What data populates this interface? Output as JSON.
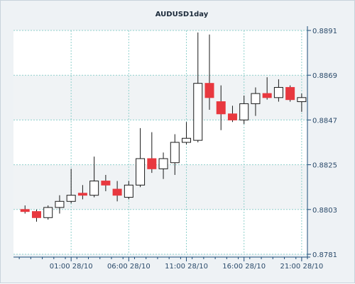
{
  "chart_data": {
    "type": "candlestick",
    "title": "AUDUSD1day",
    "xlabel": "",
    "ylabel": "",
    "ylim": [
      0.8781,
      0.8891
    ],
    "y_ticks": [
      "0.8891",
      "0.8869",
      "0.8847",
      "0.8825",
      "0.8803",
      "0.8781"
    ],
    "y_tick_values": [
      0.8891,
      0.8869,
      0.8847,
      0.8825,
      0.8803,
      0.8781
    ],
    "x_ticks": [
      "01:00 28/10",
      "06:00 28/10",
      "11:00 28/10",
      "16:00 28/10",
      "21:00 28/10"
    ],
    "x_tick_index": [
      4,
      9,
      14,
      19,
      24
    ],
    "grid": true,
    "colors": {
      "up_fill": "#ffffff",
      "down_fill": "#e8383f",
      "outline": "#1a1a1a",
      "grid": "#8fd0cc",
      "axis": "#1b4a78"
    },
    "candles": [
      {
        "open": 0.8803,
        "high": 0.8805,
        "low": 0.8801,
        "close": 0.8802
      },
      {
        "open": 0.8802,
        "high": 0.8803,
        "low": 0.8797,
        "close": 0.8799
      },
      {
        "open": 0.8799,
        "high": 0.8805,
        "low": 0.8798,
        "close": 0.8804
      },
      {
        "open": 0.8804,
        "high": 0.881,
        "low": 0.8801,
        "close": 0.8807
      },
      {
        "open": 0.8807,
        "high": 0.8823,
        "low": 0.8806,
        "close": 0.881
      },
      {
        "open": 0.8811,
        "high": 0.8815,
        "low": 0.8808,
        "close": 0.881
      },
      {
        "open": 0.881,
        "high": 0.8829,
        "low": 0.8809,
        "close": 0.8817
      },
      {
        "open": 0.8817,
        "high": 0.882,
        "low": 0.8812,
        "close": 0.8815
      },
      {
        "open": 0.8813,
        "high": 0.8817,
        "low": 0.8807,
        "close": 0.881
      },
      {
        "open": 0.8809,
        "high": 0.8817,
        "low": 0.8808,
        "close": 0.8815
      },
      {
        "open": 0.8815,
        "high": 0.8843,
        "low": 0.8814,
        "close": 0.8828
      },
      {
        "open": 0.8828,
        "high": 0.8841,
        "low": 0.8821,
        "close": 0.8823
      },
      {
        "open": 0.8823,
        "high": 0.8831,
        "low": 0.8818,
        "close": 0.8828
      },
      {
        "open": 0.8826,
        "high": 0.884,
        "low": 0.882,
        "close": 0.8836
      },
      {
        "open": 0.8836,
        "high": 0.8846,
        "low": 0.8835,
        "close": 0.8838
      },
      {
        "open": 0.8837,
        "high": 0.889,
        "low": 0.8836,
        "close": 0.8865
      },
      {
        "open": 0.8865,
        "high": 0.8889,
        "low": 0.8852,
        "close": 0.8858
      },
      {
        "open": 0.8856,
        "high": 0.8864,
        "low": 0.8842,
        "close": 0.885
      },
      {
        "open": 0.885,
        "high": 0.8854,
        "low": 0.8846,
        "close": 0.8847
      },
      {
        "open": 0.8847,
        "high": 0.8859,
        "low": 0.8845,
        "close": 0.8855
      },
      {
        "open": 0.8855,
        "high": 0.8863,
        "low": 0.8849,
        "close": 0.886
      },
      {
        "open": 0.886,
        "high": 0.8868,
        "low": 0.8857,
        "close": 0.8858
      },
      {
        "open": 0.8858,
        "high": 0.8867,
        "low": 0.8856,
        "close": 0.8863
      },
      {
        "open": 0.8863,
        "high": 0.8864,
        "low": 0.8856,
        "close": 0.8857
      },
      {
        "open": 0.8856,
        "high": 0.886,
        "low": 0.8851,
        "close": 0.8858
      }
    ]
  }
}
